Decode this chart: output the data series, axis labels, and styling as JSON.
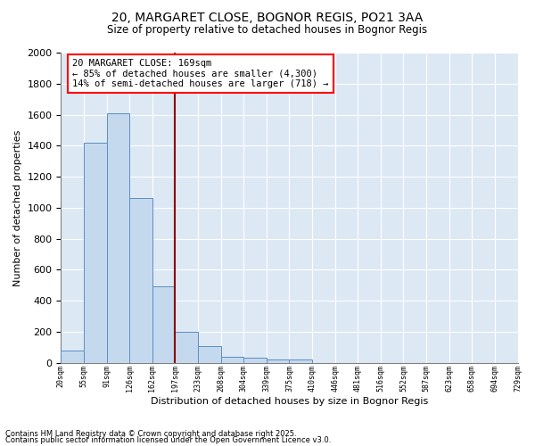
{
  "title1": "20, MARGARET CLOSE, BOGNOR REGIS, PO21 3AA",
  "title2": "Size of property relative to detached houses in Bognor Regis",
  "xlabel": "Distribution of detached houses by size in Bognor Regis",
  "ylabel": "Number of detached properties",
  "bar_values": [
    80,
    1420,
    1610,
    1060,
    490,
    200,
    105,
    40,
    30,
    20,
    20,
    0,
    0,
    0,
    0,
    0,
    0,
    0,
    0,
    0
  ],
  "categories": [
    "20sqm",
    "55sqm",
    "91sqm",
    "126sqm",
    "162sqm",
    "197sqm",
    "233sqm",
    "268sqm",
    "304sqm",
    "339sqm",
    "375sqm",
    "410sqm",
    "446sqm",
    "481sqm",
    "516sqm",
    "552sqm",
    "587sqm",
    "623sqm",
    "658sqm",
    "694sqm",
    "729sqm"
  ],
  "bar_color": "#c5d9ee",
  "bar_edge_color": "#5a8fc0",
  "vline_x": 4.5,
  "vline_color": "#8b0000",
  "annotation_text": "20 MARGARET CLOSE: 169sqm\n← 85% of detached houses are smaller (4,300)\n14% of semi-detached houses are larger (718) →",
  "bg_color": "#dde8f5",
  "footer1": "Contains HM Land Registry data © Crown copyright and database right 2025.",
  "footer2": "Contains public sector information licensed under the Open Government Licence v3.0.",
  "ylim": [
    0,
    2000
  ],
  "yticks": [
    0,
    200,
    400,
    600,
    800,
    1000,
    1200,
    1400,
    1600,
    1800,
    2000
  ]
}
